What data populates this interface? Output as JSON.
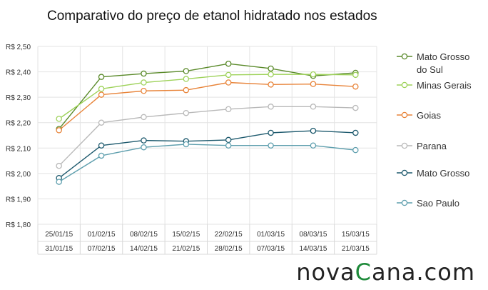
{
  "chart_data": {
    "type": "line",
    "title": "Comparativo do preço de etanol hidratado nos estados",
    "xlabel": "",
    "ylabel": "",
    "ylim": [
      1.8,
      2.5
    ],
    "yticks": [
      "R$ 1,80",
      "R$ 1,90",
      "R$ 2,00",
      "R$ 2,10",
      "R$ 2,20",
      "R$ 2,30",
      "R$ 2,40",
      "R$ 2,50"
    ],
    "categories": [
      {
        "start": "25/01/15",
        "end": "31/01/15"
      },
      {
        "start": "01/02/15",
        "end": "07/02/15"
      },
      {
        "start": "08/02/15",
        "end": "14/02/15"
      },
      {
        "start": "15/02/15",
        "end": "21/02/15"
      },
      {
        "start": "22/02/15",
        "end": "28/02/15"
      },
      {
        "start": "01/03/15",
        "end": "07/03/15"
      },
      {
        "start": "08/03/15",
        "end": "14/03/15"
      },
      {
        "start": "15/03/15",
        "end": "21/03/15"
      }
    ],
    "grid": true,
    "legend_position": "right",
    "series": [
      {
        "name": "Mato Grosso do Sul",
        "legend_lines": [
          "Mato Grosso",
          "do Sul"
        ],
        "color": "#5a8a2a",
        "values": [
          2.175,
          2.38,
          2.393,
          2.403,
          2.432,
          2.413,
          2.384,
          2.396
        ]
      },
      {
        "name": "Minas Gerais",
        "legend_lines": [
          "Minas Gerais"
        ],
        "color": "#9ed25a",
        "values": [
          2.215,
          2.333,
          2.358,
          2.372,
          2.388,
          2.39,
          2.39,
          2.388
        ]
      },
      {
        "name": "Goias",
        "legend_lines": [
          "Goias"
        ],
        "color": "#e8843a",
        "values": [
          2.17,
          2.31,
          2.325,
          2.328,
          2.358,
          2.35,
          2.352,
          2.342
        ]
      },
      {
        "name": "Parana",
        "legend_lines": [
          "Parana"
        ],
        "color": "#b9b9b9",
        "values": [
          2.03,
          2.2,
          2.222,
          2.238,
          2.253,
          2.263,
          2.263,
          2.258
        ]
      },
      {
        "name": "Mato Grosso",
        "legend_lines": [
          "Mato Grosso"
        ],
        "color": "#1e5a6e",
        "values": [
          1.982,
          2.11,
          2.13,
          2.127,
          2.132,
          2.16,
          2.168,
          2.16
        ]
      },
      {
        "name": "Sao Paulo",
        "legend_lines": [
          "Sao Paulo"
        ],
        "color": "#5f9fae",
        "values": [
          1.967,
          2.07,
          2.103,
          2.115,
          2.11,
          2.11,
          2.11,
          2.092
        ]
      }
    ]
  },
  "brand": {
    "prefix": "nova",
    "c": "C",
    "suffix": "ana",
    "dot": ".",
    "tld": "com"
  }
}
